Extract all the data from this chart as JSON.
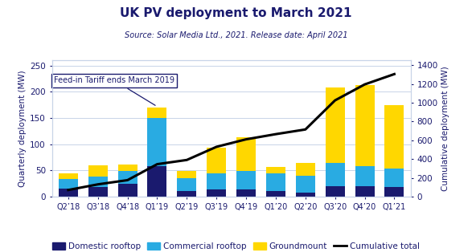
{
  "title": "UK PV deployment to March 2021",
  "subtitle": "Source: Solar Media Ltd., 2021. Release date: April 2021",
  "ylabel_left": "Quarterly deployment (MW)",
  "ylabel_right": "Cumulative deployment (MW)",
  "categories": [
    "Q2’18",
    "Q3’18",
    "Q4’18",
    "Q1’19",
    "Q2’19",
    "Q3’19",
    "Q4’19",
    "Q1’20",
    "Q2’20",
    "Q3’20",
    "Q4’20",
    "Q1’21"
  ],
  "domestic": [
    15,
    18,
    25,
    58,
    10,
    14,
    14,
    10,
    8,
    20,
    20,
    18
  ],
  "commercial": [
    18,
    20,
    24,
    92,
    25,
    30,
    35,
    35,
    32,
    45,
    38,
    35
  ],
  "groundmount": [
    12,
    22,
    12,
    20,
    14,
    50,
    65,
    12,
    25,
    143,
    155,
    122
  ],
  "cumulative": [
    70,
    130,
    175,
    345,
    390,
    530,
    610,
    665,
    715,
    1025,
    1195,
    1305
  ],
  "annotation_text": "Feed-in Tariff ends March 2019",
  "annotation_bar_idx": 3,
  "colors": {
    "domestic": "#1a1a6e",
    "commercial": "#29abe2",
    "groundmount": "#ffd700",
    "cumulative": "#000000",
    "title": "#1a1a6e",
    "subtitle": "#1a1a6e",
    "background": "#ffffff",
    "grid": "#c8d4e8"
  },
  "ylim_left": [
    0,
    260
  ],
  "ylim_right": [
    0,
    1450
  ],
  "yticks_left": [
    0,
    50,
    100,
    150,
    200,
    250
  ],
  "yticks_right": [
    0,
    200,
    400,
    600,
    800,
    1000,
    1200,
    1400
  ]
}
